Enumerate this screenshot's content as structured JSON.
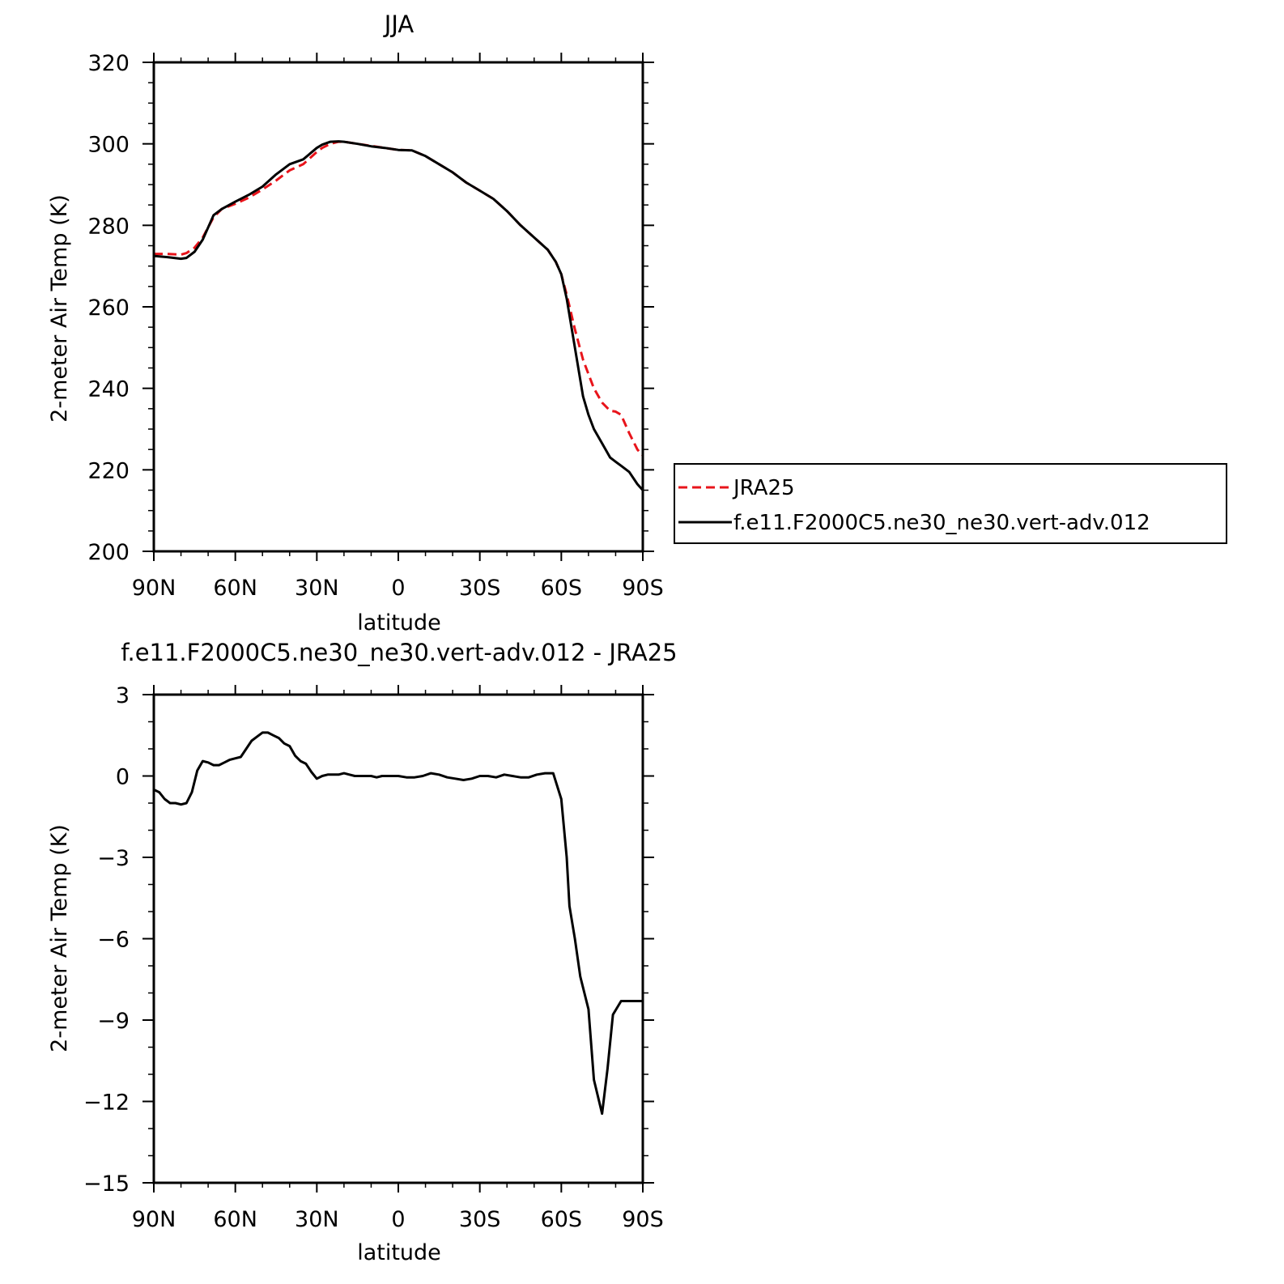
{
  "chart_data": [
    {
      "type": "line",
      "title": "JJA",
      "xlabel": "latitude",
      "ylabel": "2-meter Air Temp (K)",
      "xlim": [
        90,
        -90
      ],
      "ylim": [
        200,
        320
      ],
      "yticks": [
        200,
        220,
        240,
        260,
        280,
        300,
        320
      ],
      "xticks": [
        {
          "value": 90,
          "label": "90N"
        },
        {
          "value": 60,
          "label": "60N"
        },
        {
          "value": 30,
          "label": "30N"
        },
        {
          "value": 0,
          "label": "0"
        },
        {
          "value": -30,
          "label": "30S"
        },
        {
          "value": -60,
          "label": "60S"
        },
        {
          "value": -90,
          "label": "90S"
        }
      ],
      "grid": false,
      "legend_position": "right",
      "x": [
        90,
        85,
        80,
        78,
        75,
        72,
        68,
        65,
        60,
        55,
        50,
        45,
        40,
        35,
        30,
        28,
        25,
        22,
        20,
        15,
        10,
        5,
        0,
        -5,
        -10,
        -15,
        -20,
        -25,
        -30,
        -35,
        -40,
        -45,
        -50,
        -55,
        -58,
        -60,
        -62,
        -65,
        -68,
        -70,
        -72,
        -75,
        -78,
        -80,
        -82,
        -85,
        -88,
        -90
      ],
      "series": [
        {
          "name": "JRA25",
          "style": "dashed",
          "color": "#e8141b",
          "values": [
            273.0,
            273.0,
            272.8,
            273.2,
            274.5,
            277.0,
            282.0,
            284.0,
            285.3,
            286.8,
            288.8,
            291.0,
            293.5,
            295.0,
            298.0,
            299.0,
            300.0,
            300.5,
            300.5,
            300.0,
            299.5,
            299.0,
            298.5,
            298.4,
            297.0,
            295.0,
            293.0,
            290.5,
            288.5,
            286.5,
            283.5,
            280.0,
            277.0,
            274.0,
            271.0,
            268.0,
            263.0,
            254.5,
            247.0,
            243.5,
            240.0,
            236.5,
            234.5,
            234.3,
            233.5,
            229.0,
            225.0,
            223.5
          ]
        },
        {
          "name": "f.e11.F2000C5.ne30_ne30.vert-adv.012",
          "style": "solid",
          "color": "#000000",
          "values": [
            272.5,
            272.2,
            271.8,
            272.0,
            273.5,
            276.5,
            282.5,
            284.0,
            285.8,
            287.5,
            289.5,
            292.5,
            295.0,
            296.2,
            299.0,
            299.8,
            300.5,
            300.6,
            300.5,
            300.0,
            299.4,
            299.0,
            298.5,
            298.4,
            297.0,
            295.0,
            293.0,
            290.5,
            288.5,
            286.5,
            283.5,
            280.0,
            277.0,
            274.0,
            271.0,
            268.0,
            262.0,
            250.0,
            238.0,
            233.5,
            230.0,
            226.5,
            223.0,
            222.0,
            221.0,
            219.5,
            216.5,
            215.0
          ]
        }
      ]
    },
    {
      "type": "line",
      "title": "f.e11.F2000C5.ne30_ne30.vert-adv.012 - JRA25",
      "xlabel": "latitude",
      "ylabel": "2-meter Air Temp (K)",
      "xlim": [
        90,
        -90
      ],
      "ylim": [
        -15,
        3
      ],
      "yticks": [
        -15,
        -12,
        -9,
        -6,
        -3,
        0,
        3
      ],
      "xticks": [
        {
          "value": 90,
          "label": "90N"
        },
        {
          "value": 60,
          "label": "60N"
        },
        {
          "value": 30,
          "label": "30N"
        },
        {
          "value": 0,
          "label": "0"
        },
        {
          "value": -30,
          "label": "30S"
        },
        {
          "value": -60,
          "label": "60S"
        },
        {
          "value": -90,
          "label": "90S"
        }
      ],
      "grid": false,
      "x": [
        90,
        88,
        86,
        84,
        82,
        80,
        78,
        76,
        74,
        72,
        70,
        68,
        66,
        64,
        62,
        60,
        58,
        56,
        54,
        52,
        50,
        48,
        46,
        44,
        42,
        40,
        38,
        36,
        34,
        32,
        30,
        28,
        26,
        24,
        22,
        20,
        18,
        16,
        14,
        12,
        10,
        8,
        6,
        4,
        2,
        0,
        -3,
        -6,
        -9,
        -12,
        -15,
        -18,
        -21,
        -24,
        -27,
        -30,
        -33,
        -36,
        -39,
        -42,
        -45,
        -48,
        -51,
        -54,
        -57,
        -60,
        -62,
        -63,
        -65,
        -67,
        -70,
        -72,
        -75,
        -77,
        -79,
        -82,
        -84,
        -86,
        -88,
        -90
      ],
      "series": [
        {
          "name": "",
          "style": "solid",
          "color": "#000000",
          "values": [
            -0.5,
            -0.6,
            -0.85,
            -1.0,
            -1.0,
            -1.05,
            -1.0,
            -0.6,
            0.2,
            0.55,
            0.5,
            0.4,
            0.4,
            0.5,
            0.6,
            0.65,
            0.7,
            1.0,
            1.3,
            1.45,
            1.6,
            1.6,
            1.5,
            1.4,
            1.2,
            1.1,
            0.75,
            0.55,
            0.45,
            0.15,
            -0.1,
            0.0,
            0.05,
            0.05,
            0.05,
            0.1,
            0.05,
            0.0,
            0.0,
            0.0,
            0.0,
            -0.05,
            0.0,
            0.0,
            0.0,
            0.0,
            -0.05,
            -0.05,
            0.0,
            0.1,
            0.05,
            -0.05,
            -0.1,
            -0.15,
            -0.1,
            0.0,
            0.0,
            -0.05,
            0.05,
            0.0,
            -0.05,
            -0.05,
            0.05,
            0.1,
            0.1,
            -0.85,
            -3.0,
            -4.8,
            -6.0,
            -7.4,
            -8.6,
            -11.2,
            -12.45,
            -10.8,
            -8.8,
            -8.3,
            -8.3,
            -8.3,
            -8.3,
            -8.3
          ]
        }
      ]
    }
  ]
}
